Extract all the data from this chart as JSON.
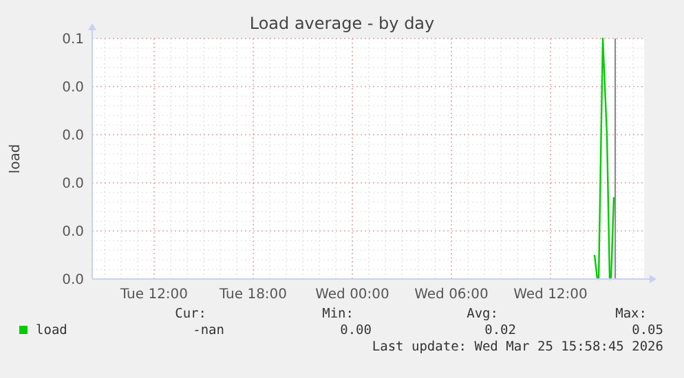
{
  "chart_data": {
    "type": "line",
    "title": "Load average - by day",
    "ylabel": "load",
    "x": [
      "2026-03-25T14:40",
      "2026-03-25T14:50",
      "2026-03-25T14:55",
      "2026-03-25T15:10",
      "2026-03-25T15:25",
      "2026-03-25T15:35",
      "2026-03-25T15:40",
      "2026-03-25T15:50"
    ],
    "series": [
      {
        "name": "load",
        "color": "#00cc00",
        "values": [
          0.005,
          0,
          0,
          0.05,
          0.03,
          0,
          0,
          0.017
        ]
      }
    ],
    "xlim": [
      "2026-03-24T08:15",
      "2026-03-25T17:40"
    ],
    "xticks": [
      {
        "value": "2026-03-24T12:00",
        "label": "Tue 12:00"
      },
      {
        "value": "2026-03-24T18:00",
        "label": "Tue 18:00"
      },
      {
        "value": "2026-03-25T00:00",
        "label": "Wed 00:00"
      },
      {
        "value": "2026-03-25T06:00",
        "label": "Wed 06:00"
      },
      {
        "value": "2026-03-25T12:00",
        "label": "Wed 12:00"
      }
    ],
    "ylim": [
      0,
      0.05
    ],
    "yticks": [
      {
        "value": 0,
        "label": "0.0"
      },
      {
        "value": 0.01,
        "label": "0.0"
      },
      {
        "value": 0.02,
        "label": "0.0"
      },
      {
        "value": 0.03,
        "label": "0.0"
      },
      {
        "value": 0.04,
        "label": "0.0"
      },
      {
        "value": 0.05,
        "label": "0.1"
      }
    ],
    "ref_lines": [
      {
        "axis": "x",
        "value": "2026-03-25T15:55",
        "color": "#888888"
      }
    ],
    "grid": true,
    "legend": "bottom left",
    "annotations": [
      "Cur:",
      "Min:",
      "Avg:",
      "Max:",
      "-nan",
      "0.00",
      "0.02",
      "0.05",
      "Last update: Wed Mar 25 15:58:45 2026"
    ]
  }
}
